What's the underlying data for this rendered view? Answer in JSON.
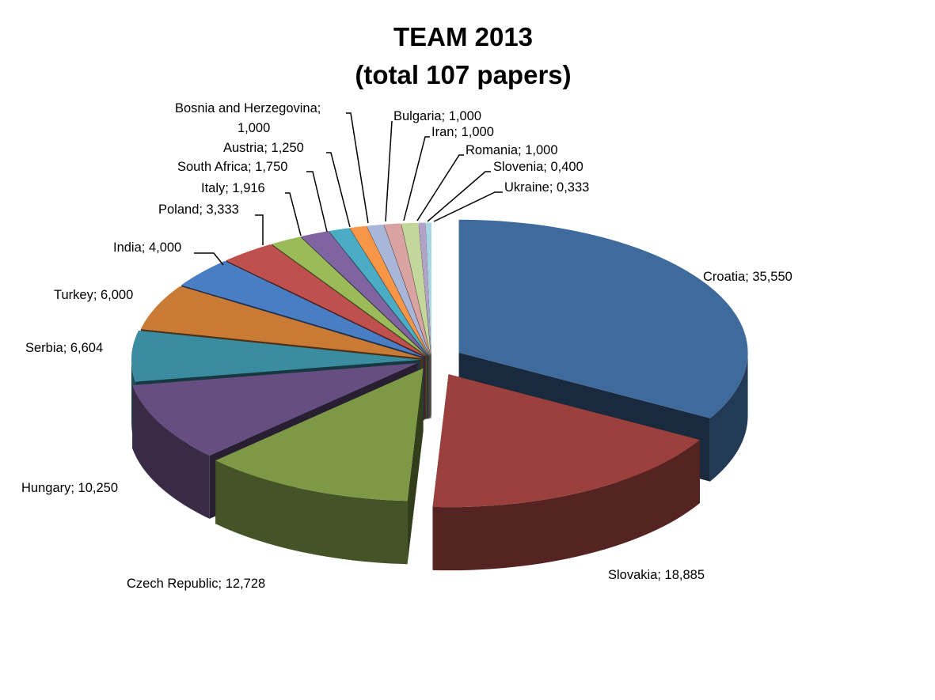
{
  "chart_data": {
    "type": "pie",
    "style": "3d-exploded",
    "title": [
      "TEAM 2013",
      "(total 107 papers)"
    ],
    "legend": "none",
    "slices": [
      {
        "name": "Croatia",
        "value": 35.55,
        "label": "Croatia; 35,550",
        "color": "#3F6A9C"
      },
      {
        "name": "Slovakia",
        "value": 18.885,
        "label": "Slovakia; 18,885",
        "color": "#9B403D"
      },
      {
        "name": "Czech Republic",
        "value": 12.728,
        "label": "Czech Republic; 12,728",
        "color": "#7D9945"
      },
      {
        "name": "Hungary",
        "value": 10.25,
        "label": "Hungary; 10,250",
        "color": "#674E80"
      },
      {
        "name": "Serbia",
        "value": 6.604,
        "label": "Serbia; 6,604",
        "color": "#3A8CA0"
      },
      {
        "name": "Turkey",
        "value": 6.0,
        "label": "Turkey; 6,000",
        "color": "#C97A35"
      },
      {
        "name": "India",
        "value": 4.0,
        "label": "India; 4,000",
        "color": "#4A7EC4"
      },
      {
        "name": "Poland",
        "value": 3.333,
        "label": "Poland; 3,333",
        "color": "#C0504D"
      },
      {
        "name": "Italy",
        "value": 1.916,
        "label": "Italy; 1,916",
        "color": "#9BBB59"
      },
      {
        "name": "South Africa",
        "value": 1.75,
        "label": "South Africa; 1,750",
        "color": "#8064A2"
      },
      {
        "name": "Austria",
        "value": 1.25,
        "label": "Austria; 1,250",
        "color": "#4BACC6"
      },
      {
        "name": "Bosnia and Herzegovina",
        "value": 1.0,
        "label": "Bosnia and Herzegovina;",
        "label2": "1,000",
        "color": "#F79646"
      },
      {
        "name": "Bulgaria",
        "value": 1.0,
        "label": "Bulgaria; 1,000",
        "color": "#A9B6D8"
      },
      {
        "name": "Iran",
        "value": 1.0,
        "label": "Iran; 1,000",
        "color": "#D9A3A2"
      },
      {
        "name": "Romania",
        "value": 1.0,
        "label": "Romania; 1,000",
        "color": "#C3D69B"
      },
      {
        "name": "Slovenia",
        "value": 0.4,
        "label": "Slovenia; 0,400",
        "color": "#B3A2C7"
      },
      {
        "name": "Ukraine",
        "value": 0.333,
        "label": "Ukraine; 0,333",
        "color": "#A5D5E2"
      }
    ]
  }
}
